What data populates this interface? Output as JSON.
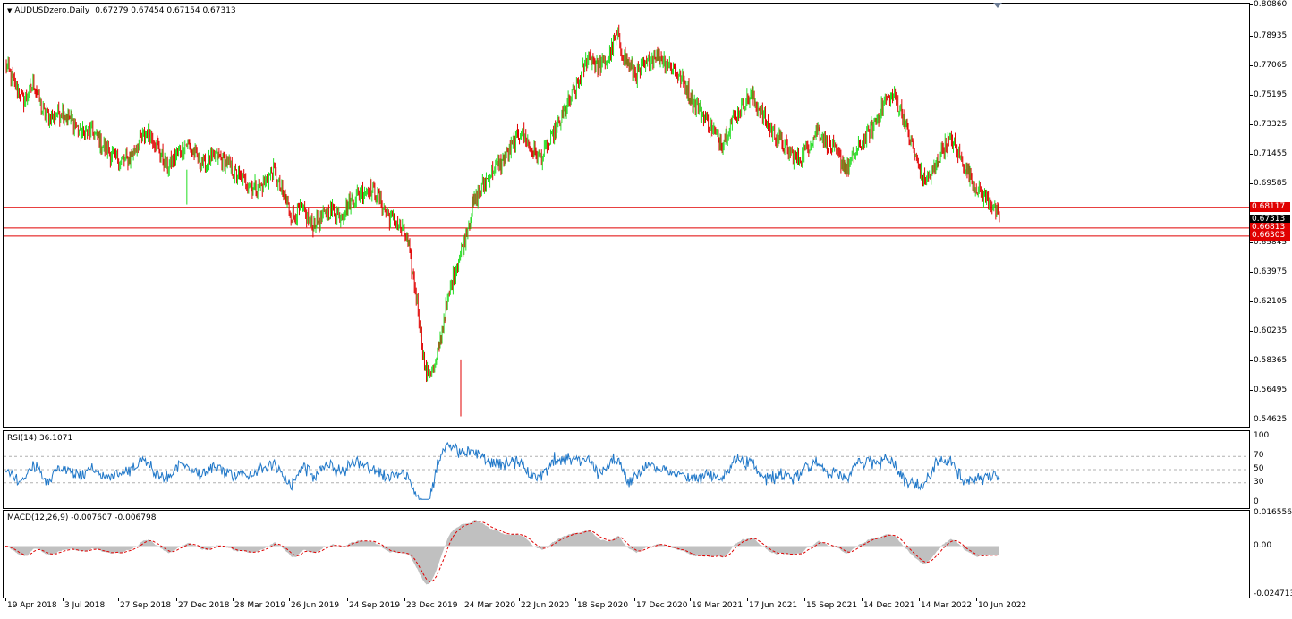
{
  "header": {
    "symbol": "AUDUSDzero,Daily",
    "ohlc": "0.67279 0.67454 0.67154 0.67313"
  },
  "colors": {
    "up": "#22dd22",
    "down": "#e00000",
    "line": "#e00000",
    "rsi": "#1f77c8",
    "macd_hist": "#c0c0c0",
    "macd_signal": "#e00000"
  },
  "price_axis": {
    "ticks": [
      "0.80860",
      "0.78935",
      "0.77065",
      "0.75195",
      "0.73325",
      "0.71455",
      "0.69585",
      "0.65845",
      "0.63975",
      "0.62105",
      "0.60235",
      "0.58365",
      "0.56495",
      "0.54625"
    ],
    "tick_values": [
      0.8086,
      0.78935,
      0.77065,
      0.75195,
      0.73325,
      0.71455,
      0.69585,
      0.65845,
      0.63975,
      0.62105,
      0.60235,
      0.58365,
      0.56495,
      0.54625
    ],
    "range": [
      0.5425,
      0.81
    ],
    "levels": [
      {
        "label": "0.68117",
        "value": 0.68117,
        "color": "#e00000"
      },
      {
        "label": "0.67313",
        "value": 0.67313,
        "color": "#000000"
      },
      {
        "label": "0.66813",
        "value": 0.66813,
        "color": "#e00000"
      },
      {
        "label": "0.66303",
        "value": 0.66303,
        "color": "#e00000"
      }
    ],
    "hline_values": [
      0.68117,
      0.67313,
      0.66813,
      0.66303
    ]
  },
  "rsi": {
    "label": "RSI(14) 36.1071",
    "ticks": [
      "100",
      "70",
      "50",
      "30",
      "0"
    ],
    "tick_values": [
      100,
      70,
      50,
      30,
      0
    ]
  },
  "macd": {
    "label": "MACD(12,26,9) -0.007607 -0.006798",
    "ticks": [
      "0.016556",
      "0.00",
      "-0.024713"
    ],
    "tick_values": [
      0.016556,
      0,
      -0.024713
    ],
    "range": [
      -0.0262,
      0.018
    ]
  },
  "time_axis": {
    "labels": [
      "19 Apr 2018",
      "3 Jul 2018",
      "27 Sep 2018",
      "27 Dec 2018",
      "28 Mar 2019",
      "26 Jun 2019",
      "24 Sep 2019",
      "23 Dec 2019",
      "24 Mar 2020",
      "22 Jun 2020",
      "18 Sep 2020",
      "17 Dec 2020",
      "19 Mar 2021",
      "17 Jun 2021",
      "15 Sep 2021",
      "14 Dec 2021",
      "14 Mar 2022",
      "10 Jun 2022"
    ]
  },
  "chart_data": {
    "type": "candlestick",
    "x_labels": [
      "19 Apr 2018",
      "3 Jul 2018",
      "27 Sep 2018",
      "27 Dec 2018",
      "28 Mar 2019",
      "26 Jun 2019",
      "24 Sep 2019",
      "23 Dec 2019",
      "24 Mar 2020",
      "22 Jun 2020",
      "18 Sep 2020",
      "17 Dec 2020",
      "19 Mar 2021",
      "17 Jun 2021",
      "15 Sep 2021",
      "14 Dec 2021",
      "14 Mar 2022",
      "10 Jun 2022"
    ],
    "close_path": [
      0.772,
      0.758,
      0.748,
      0.76,
      0.74,
      0.738,
      0.742,
      0.735,
      0.728,
      0.73,
      0.722,
      0.715,
      0.71,
      0.712,
      0.722,
      0.73,
      0.718,
      0.706,
      0.715,
      0.722,
      0.712,
      0.708,
      0.714,
      0.71,
      0.702,
      0.698,
      0.694,
      0.695,
      0.705,
      0.69,
      0.675,
      0.68,
      0.67,
      0.674,
      0.68,
      0.676,
      0.684,
      0.69,
      0.694,
      0.688,
      0.676,
      0.672,
      0.662,
      0.625,
      0.575,
      0.58,
      0.615,
      0.64,
      0.66,
      0.685,
      0.695,
      0.705,
      0.71,
      0.72,
      0.73,
      0.718,
      0.712,
      0.722,
      0.735,
      0.748,
      0.76,
      0.778,
      0.77,
      0.775,
      0.79,
      0.772,
      0.765,
      0.77,
      0.778,
      0.774,
      0.768,
      0.76,
      0.748,
      0.74,
      0.73,
      0.722,
      0.735,
      0.745,
      0.752,
      0.742,
      0.73,
      0.725,
      0.715,
      0.712,
      0.72,
      0.73,
      0.722,
      0.715,
      0.706,
      0.716,
      0.725,
      0.735,
      0.748,
      0.752,
      0.738,
      0.718,
      0.698,
      0.702,
      0.718,
      0.724,
      0.712,
      0.7,
      0.69,
      0.686,
      0.673
    ]
  }
}
